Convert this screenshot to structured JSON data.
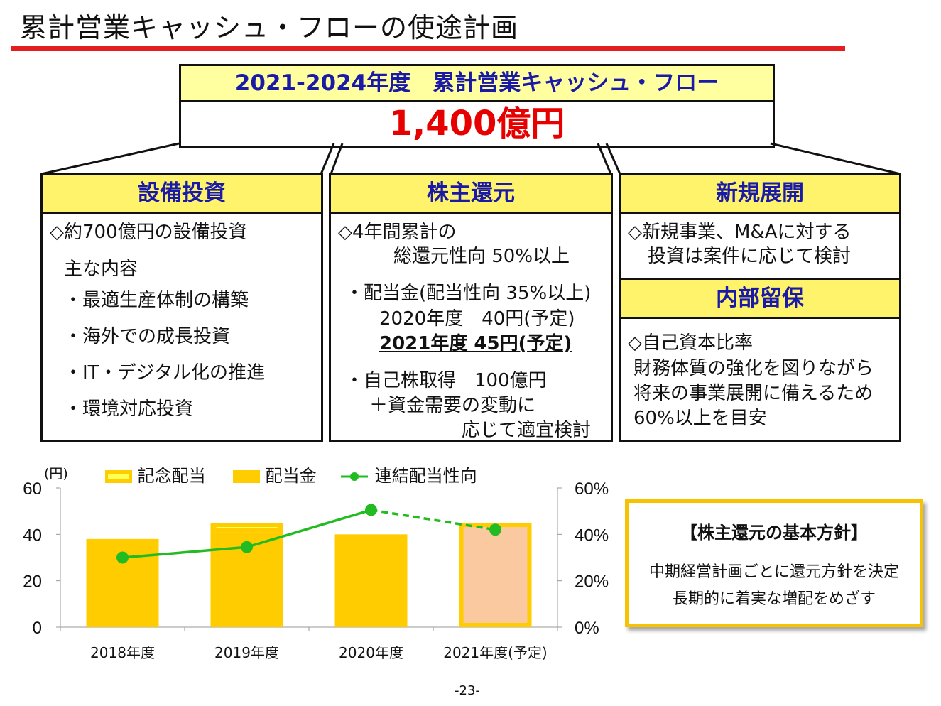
{
  "page": {
    "title": "累計営業キャッシュ・フローの使途計画",
    "page_number": "-23-"
  },
  "summary": {
    "header": "2021-2024年度　累計営業キャッシュ・フロー",
    "amount": "1,400億円"
  },
  "capex": {
    "header": "設備投資",
    "lines": [
      "◇約700億円の設備投資",
      "主な内容",
      "・最適生産体制の構築",
      "・海外での成長投資",
      "・IT・デジタル化の推進",
      "・環境対応投資"
    ]
  },
  "shareholder": {
    "header": "株主還元",
    "lines": [
      "◇4年間累計の",
      "総還元性向 50%以上",
      "・配当金(配当性向 35%以上)",
      "2020年度　40円(予定)",
      "2021年度 45円(予定)",
      "・自己株取得　100億円",
      "＋資金需要の変動に",
      "応じて適宜検討"
    ]
  },
  "new_business": {
    "header": "新規展開",
    "lines": [
      "◇新規事業、M&Aに対する",
      "投資は案件に応じて検討"
    ]
  },
  "retained": {
    "header": "内部留保",
    "lines": [
      "◇自己資本比率",
      "財務体質の強化を図りながら",
      "将来の事業展開に備えるため",
      "60%以上を目安"
    ]
  },
  "policy": {
    "header": "【株主還元の基本方針】",
    "lines": [
      "中期経営計画ごとに還元方針を決定",
      "長期的に着実な増配をめざす"
    ]
  },
  "colors": {
    "bar": "#ffcc00",
    "bar_forecast": "#fbc9a0",
    "line": "#22bb22",
    "title_rule": "#e41e1e",
    "accent_text": "#1a1aa8",
    "amount": "#e60000"
  },
  "chart_data": {
    "type": "bar",
    "categories": [
      "2018年度",
      "2019年度",
      "2020年度",
      "2021年度(予定)"
    ],
    "series": [
      {
        "name": "配当金",
        "type": "bar",
        "axis": "left",
        "values": [
          38,
          41,
          40,
          45
        ]
      },
      {
        "name": "記念配当",
        "type": "bar",
        "axis": "left",
        "stacked_on": "配当金",
        "values": [
          0,
          4,
          0,
          0
        ]
      },
      {
        "name": "連結配当性向",
        "type": "line",
        "axis": "right",
        "values": [
          30,
          34.5,
          50.5,
          42
        ],
        "forecast_from_index": 2
      }
    ],
    "y_left": {
      "label": "(円)",
      "ylim": [
        0,
        60
      ],
      "ticks": [
        "0",
        "20",
        "40",
        "60"
      ]
    },
    "y_right": {
      "ylim": [
        0,
        60
      ],
      "ticks": [
        "0%",
        "20%",
        "40%",
        "60%"
      ]
    },
    "legend": [
      "記念配当",
      "配当金",
      "連結配当性向"
    ],
    "legend_position": "top",
    "grid": false
  }
}
